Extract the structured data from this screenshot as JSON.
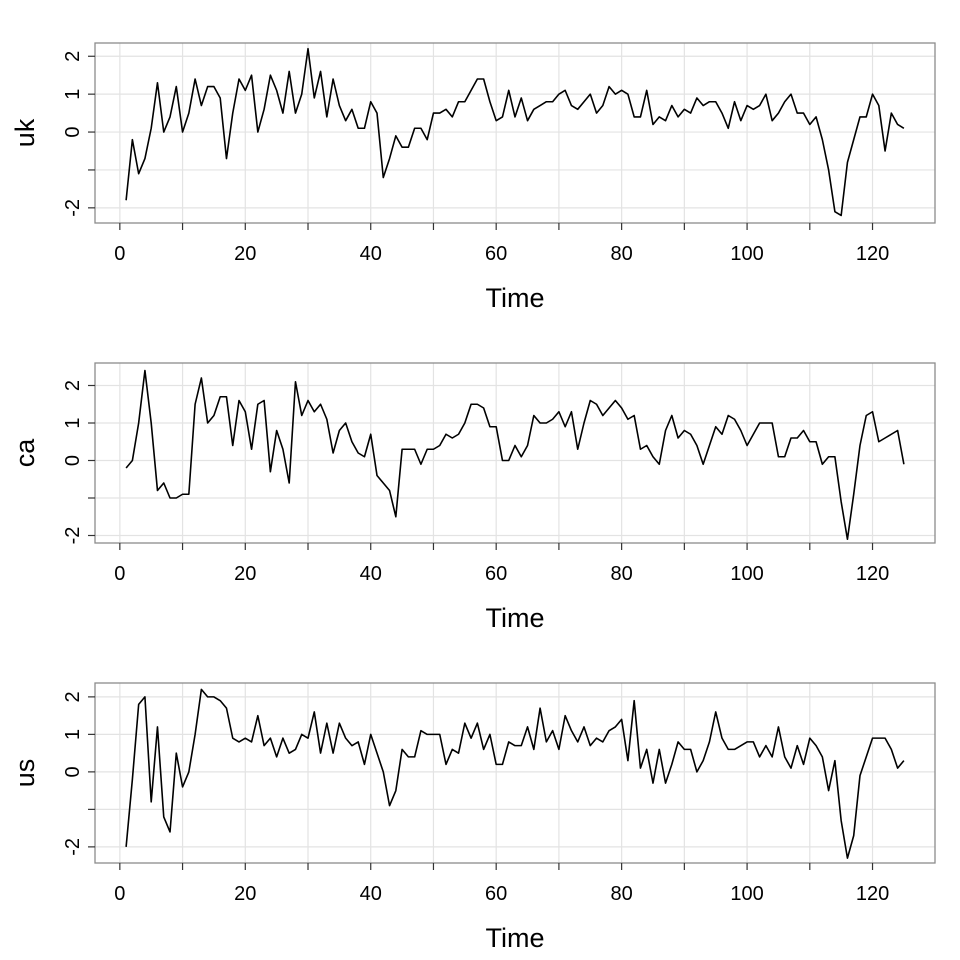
{
  "chart_data": [
    {
      "type": "line",
      "ylabel": "uk",
      "xlabel": "Time",
      "x": [
        1,
        2,
        3,
        4,
        5,
        6,
        7,
        8,
        9,
        10,
        11,
        12,
        13,
        14,
        15,
        16,
        17,
        18,
        19,
        20,
        21,
        22,
        23,
        24,
        25,
        26,
        27,
        28,
        29,
        30,
        31,
        32,
        33,
        34,
        35,
        36,
        37,
        38,
        39,
        40,
        41,
        42,
        43,
        44,
        45,
        46,
        47,
        48,
        49,
        50,
        51,
        52,
        53,
        54,
        55,
        56,
        57,
        58,
        59,
        60,
        61,
        62,
        63,
        64,
        65,
        66,
        67,
        68,
        69,
        70,
        71,
        72,
        73,
        74,
        75,
        76,
        77,
        78,
        79,
        80,
        81,
        82,
        83,
        84,
        85,
        86,
        87,
        88,
        89,
        90,
        91,
        92,
        93,
        94,
        95,
        96,
        97,
        98,
        99,
        100,
        101,
        102,
        103,
        104,
        105,
        106,
        107,
        108,
        109,
        110,
        111,
        112,
        113,
        114,
        115,
        116,
        117,
        118,
        119,
        120,
        121,
        122,
        123,
        124,
        125
      ],
      "series": [
        {
          "name": "uk",
          "color": "#000000",
          "values": [
            -1.8,
            -0.2,
            -1.1,
            -0.7,
            0.1,
            1.3,
            0.0,
            0.4,
            1.2,
            0.0,
            0.5,
            1.4,
            0.7,
            1.2,
            1.2,
            0.9,
            -0.7,
            0.5,
            1.4,
            1.1,
            1.5,
            0.0,
            0.6,
            1.5,
            1.1,
            0.5,
            1.6,
            0.5,
            1.0,
            2.2,
            0.9,
            1.6,
            0.4,
            1.4,
            0.7,
            0.3,
            0.6,
            0.1,
            0.1,
            0.8,
            0.5,
            -1.2,
            -0.7,
            -0.1,
            -0.4,
            -0.4,
            0.1,
            0.1,
            -0.2,
            0.5,
            0.5,
            0.6,
            0.4,
            0.8,
            0.8,
            1.1,
            1.4,
            1.4,
            0.8,
            0.3,
            0.4,
            1.1,
            0.4,
            0.9,
            0.3,
            0.6,
            0.7,
            0.8,
            0.8,
            1.0,
            1.1,
            0.7,
            0.6,
            0.8,
            1.0,
            0.5,
            0.7,
            1.2,
            1.0,
            1.1,
            1.0,
            0.4,
            0.4,
            1.1,
            0.2,
            0.4,
            0.3,
            0.7,
            0.4,
            0.6,
            0.5,
            0.9,
            0.7,
            0.8,
            0.8,
            0.5,
            0.1,
            0.8,
            0.3,
            0.7,
            0.6,
            0.7,
            1.0,
            0.3,
            0.5,
            0.8,
            1.0,
            0.5,
            0.5,
            0.2,
            0.4,
            -0.2,
            -1.0,
            -2.1,
            -2.2,
            -0.8,
            -0.2,
            0.4,
            0.4,
            1.0,
            0.7,
            -0.5,
            0.5,
            0.2,
            0.1
          ]
        }
      ],
      "xlim": [
        -3.96,
        129.96
      ],
      "xticks": [
        0,
        20,
        40,
        60,
        80,
        100,
        120
      ],
      "xticks_unlabeled": [
        10,
        30,
        50,
        70,
        90,
        110
      ],
      "ylim": [
        -2.4,
        2.35
      ],
      "yticks": [
        -2,
        0,
        1,
        2
      ],
      "yticks_unlabeled": [
        -1
      ],
      "grid": true
    },
    {
      "type": "line",
      "ylabel": "ca",
      "xlabel": "Time",
      "x": [
        1,
        2,
        3,
        4,
        5,
        6,
        7,
        8,
        9,
        10,
        11,
        12,
        13,
        14,
        15,
        16,
        17,
        18,
        19,
        20,
        21,
        22,
        23,
        24,
        25,
        26,
        27,
        28,
        29,
        30,
        31,
        32,
        33,
        34,
        35,
        36,
        37,
        38,
        39,
        40,
        41,
        42,
        43,
        44,
        45,
        46,
        47,
        48,
        49,
        50,
        51,
        52,
        53,
        54,
        55,
        56,
        57,
        58,
        59,
        60,
        61,
        62,
        63,
        64,
        65,
        66,
        67,
        68,
        69,
        70,
        71,
        72,
        73,
        74,
        75,
        76,
        77,
        78,
        79,
        80,
        81,
        82,
        83,
        84,
        85,
        86,
        87,
        88,
        89,
        90,
        91,
        92,
        93,
        94,
        95,
        96,
        97,
        98,
        99,
        100,
        101,
        102,
        103,
        104,
        105,
        106,
        107,
        108,
        109,
        110,
        111,
        112,
        113,
        114,
        115,
        116,
        117,
        118,
        119,
        120,
        121,
        122,
        123,
        124,
        125
      ],
      "series": [
        {
          "name": "ca",
          "color": "#000000",
          "values": [
            -0.2,
            0.0,
            1.0,
            2.4,
            1.0,
            -0.8,
            -0.6,
            -1.0,
            -1.0,
            -0.9,
            -0.9,
            1.5,
            2.2,
            1.0,
            1.2,
            1.7,
            1.7,
            0.4,
            1.6,
            1.3,
            0.3,
            1.5,
            1.6,
            -0.3,
            0.8,
            0.3,
            -0.6,
            2.1,
            1.2,
            1.6,
            1.3,
            1.5,
            1.1,
            0.2,
            0.8,
            1.0,
            0.5,
            0.2,
            0.1,
            0.7,
            -0.4,
            -0.6,
            -0.8,
            -1.5,
            0.3,
            0.3,
            0.3,
            -0.1,
            0.3,
            0.3,
            0.4,
            0.7,
            0.6,
            0.7,
            1.0,
            1.5,
            1.5,
            1.4,
            0.9,
            0.9,
            0.0,
            0.0,
            0.4,
            0.1,
            0.4,
            1.2,
            1.0,
            1.0,
            1.1,
            1.3,
            0.9,
            1.3,
            0.3,
            1.0,
            1.6,
            1.5,
            1.2,
            1.4,
            1.6,
            1.4,
            1.1,
            1.2,
            0.3,
            0.4,
            0.1,
            -0.1,
            0.8,
            1.2,
            0.6,
            0.8,
            0.7,
            0.4,
            -0.1,
            0.4,
            0.9,
            0.7,
            1.2,
            1.1,
            0.8,
            0.4,
            0.7,
            1.0,
            1.0,
            1.0,
            0.1,
            0.1,
            0.6,
            0.6,
            0.8,
            0.5,
            0.5,
            -0.1,
            0.1,
            0.1,
            -1.1,
            -2.1,
            -0.9,
            0.4,
            1.2,
            1.3,
            0.5,
            0.6,
            0.7,
            0.8,
            -0.1
          ]
        }
      ],
      "xlim": [
        -3.96,
        129.96
      ],
      "xticks": [
        0,
        20,
        40,
        60,
        80,
        100,
        120
      ],
      "xticks_unlabeled": [
        10,
        30,
        50,
        70,
        90,
        110
      ],
      "ylim": [
        -2.2,
        2.6
      ],
      "yticks": [
        -2,
        0,
        1,
        2
      ],
      "yticks_unlabeled": [
        -1
      ],
      "grid": true
    },
    {
      "type": "line",
      "ylabel": "us",
      "xlabel": "Time",
      "x": [
        1,
        2,
        3,
        4,
        5,
        6,
        7,
        8,
        9,
        10,
        11,
        12,
        13,
        14,
        15,
        16,
        17,
        18,
        19,
        20,
        21,
        22,
        23,
        24,
        25,
        26,
        27,
        28,
        29,
        30,
        31,
        32,
        33,
        34,
        35,
        36,
        37,
        38,
        39,
        40,
        41,
        42,
        43,
        44,
        45,
        46,
        47,
        48,
        49,
        50,
        51,
        52,
        53,
        54,
        55,
        56,
        57,
        58,
        59,
        60,
        61,
        62,
        63,
        64,
        65,
        66,
        67,
        68,
        69,
        70,
        71,
        72,
        73,
        74,
        75,
        76,
        77,
        78,
        79,
        80,
        81,
        82,
        83,
        84,
        85,
        86,
        87,
        88,
        89,
        90,
        91,
        92,
        93,
        94,
        95,
        96,
        97,
        98,
        99,
        100,
        101,
        102,
        103,
        104,
        105,
        106,
        107,
        108,
        109,
        110,
        111,
        112,
        113,
        114,
        115,
        116,
        117,
        118,
        119,
        120,
        121,
        122,
        123,
        124,
        125
      ],
      "series": [
        {
          "name": "us",
          "color": "#000000",
          "values": [
            -2.0,
            -0.2,
            1.8,
            2.0,
            -0.8,
            1.2,
            -1.2,
            -1.6,
            0.5,
            -0.4,
            0.0,
            1.0,
            2.2,
            2.0,
            2.0,
            1.9,
            1.7,
            0.9,
            0.8,
            0.9,
            0.8,
            1.5,
            0.7,
            0.9,
            0.4,
            0.9,
            0.5,
            0.6,
            1.0,
            0.9,
            1.6,
            0.5,
            1.3,
            0.5,
            1.3,
            0.9,
            0.7,
            0.8,
            0.2,
            1.0,
            0.5,
            0.0,
            -0.9,
            -0.5,
            0.6,
            0.4,
            0.4,
            1.1,
            1.0,
            1.0,
            1.0,
            0.2,
            0.6,
            0.5,
            1.3,
            0.9,
            1.3,
            0.6,
            1.0,
            0.2,
            0.2,
            0.8,
            0.7,
            0.7,
            1.2,
            0.6,
            1.7,
            0.8,
            1.1,
            0.6,
            1.5,
            1.1,
            0.8,
            1.2,
            0.7,
            0.9,
            0.8,
            1.1,
            1.2,
            1.4,
            0.3,
            1.9,
            0.1,
            0.6,
            -0.3,
            0.6,
            -0.3,
            0.2,
            0.8,
            0.6,
            0.6,
            0.0,
            0.3,
            0.8,
            1.6,
            0.9,
            0.6,
            0.6,
            0.7,
            0.8,
            0.8,
            0.4,
            0.7,
            0.4,
            1.2,
            0.4,
            0.1,
            0.7,
            0.2,
            0.9,
            0.7,
            0.4,
            -0.5,
            0.3,
            -1.3,
            -2.3,
            -1.7,
            -0.1,
            0.4,
            0.9,
            0.9,
            0.9,
            0.6,
            0.1,
            0.3
          ]
        }
      ],
      "xlim": [
        -3.96,
        129.96
      ],
      "xticks": [
        0,
        20,
        40,
        60,
        80,
        100,
        120
      ],
      "xticks_unlabeled": [
        10,
        30,
        50,
        70,
        90,
        110
      ],
      "ylim": [
        -2.43,
        2.37
      ],
      "yticks": [
        -2,
        0,
        1,
        2
      ],
      "yticks_unlabeled": [
        -1
      ],
      "grid": true
    }
  ]
}
